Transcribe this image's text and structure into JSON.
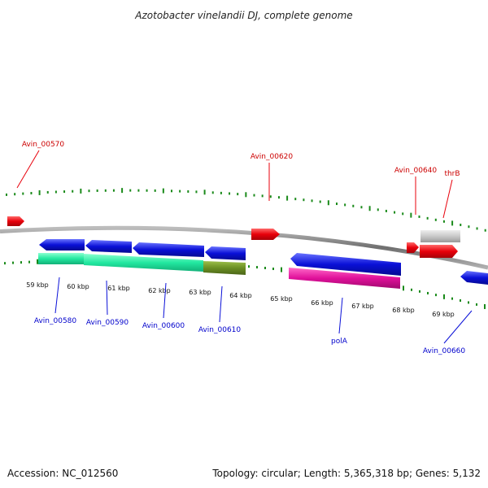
{
  "title": "Azotobacter vinelandii DJ, complete genome",
  "footer": {
    "accession": "Accession: NC_012560",
    "summary": "Topology: circular; Length: 5,365,318 bp; Genes: 5,132"
  },
  "scale_labels": [
    "59 kbp",
    "60 kbp",
    "61 kbp",
    "62 kbp",
    "63 kbp",
    "64 kbp",
    "65 kbp",
    "66 kbp",
    "67 kbp",
    "68 kbp",
    "69 kbp"
  ],
  "colors": {
    "forward": "#e8000b",
    "reverse": "#0a10d8",
    "tick": "#1a8a1a",
    "backbone": "#808080",
    "rna_green": "#22e8a0",
    "olive": "#6b8e23",
    "magenta": "#e0109a",
    "grey": "#c8c8c8"
  },
  "gene_labels": [
    {
      "name": "Avin_00570",
      "strand": "forward"
    },
    {
      "name": "Avin_00620",
      "strand": "forward"
    },
    {
      "name": "Avin_00640",
      "strand": "forward"
    },
    {
      "name": "thrB",
      "strand": "forward"
    },
    {
      "name": "Avin_00580",
      "strand": "reverse"
    },
    {
      "name": "Avin_00590",
      "strand": "reverse"
    },
    {
      "name": "Avin_00600",
      "strand": "reverse"
    },
    {
      "name": "Avin_00610",
      "strand": "reverse"
    },
    {
      "name": "polA",
      "strand": "reverse"
    },
    {
      "name": "Avin_00660",
      "strand": "reverse"
    }
  ]
}
